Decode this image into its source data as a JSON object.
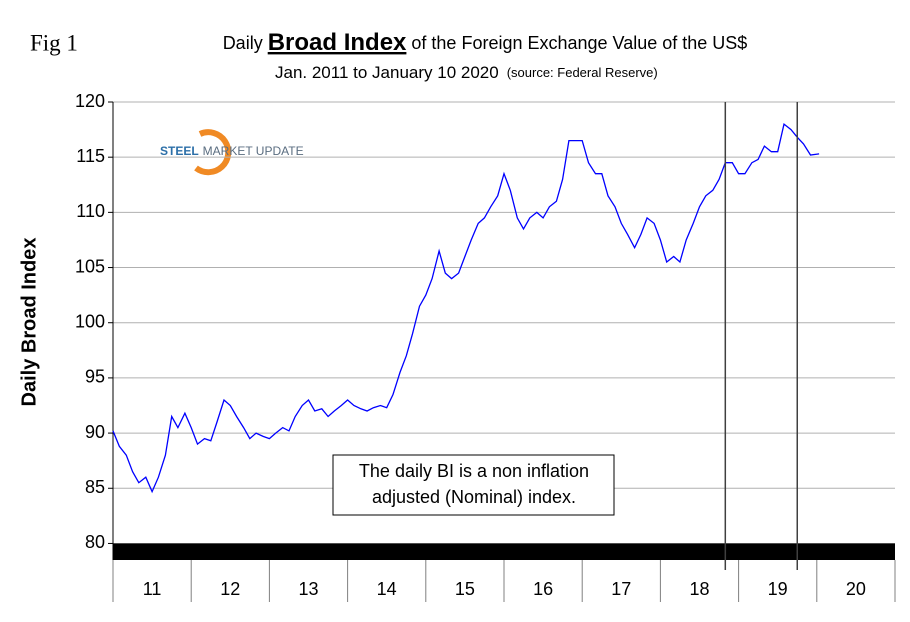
{
  "chart_data": {
    "type": "line",
    "fig_label": "Fig 1",
    "title_parts": [
      "Daily ",
      "Broad Index",
      " of the Foreign Exchange Value of the US$"
    ],
    "subtitle": "Jan. 2011 to January 10 2020",
    "source": "(source: Federal Reserve)",
    "y_label": "Daily Broad Index",
    "logo": [
      "STEEL",
      "MARKET UPDATE"
    ],
    "annotation": [
      "The daily BI is a non inflation",
      "adjusted (Nominal) index."
    ],
    "categories": [
      "11",
      "12",
      "13",
      "14",
      "15",
      "16",
      "17",
      "18",
      "19",
      "20"
    ],
    "xlim": [
      2011,
      2021
    ],
    "ylim": [
      78.5,
      120
    ],
    "yticks": [
      80,
      85,
      90,
      95,
      100,
      105,
      110,
      115,
      120
    ],
    "grid": true,
    "color": "#0000ff",
    "vlines": [
      2018.83,
      2019.75
    ],
    "x": [
      2011.0,
      2011.08,
      2011.17,
      2011.25,
      2011.33,
      2011.42,
      2011.5,
      2011.58,
      2011.67,
      2011.75,
      2011.83,
      2011.92,
      2012.0,
      2012.08,
      2012.17,
      2012.25,
      2012.33,
      2012.42,
      2012.5,
      2012.58,
      2012.67,
      2012.75,
      2012.83,
      2012.92,
      2013.0,
      2013.08,
      2013.17,
      2013.25,
      2013.33,
      2013.42,
      2013.5,
      2013.58,
      2013.67,
      2013.75,
      2013.83,
      2013.92,
      2014.0,
      2014.08,
      2014.17,
      2014.25,
      2014.33,
      2014.42,
      2014.5,
      2014.58,
      2014.67,
      2014.75,
      2014.83,
      2014.92,
      2015.0,
      2015.08,
      2015.17,
      2015.25,
      2015.33,
      2015.42,
      2015.5,
      2015.58,
      2015.67,
      2015.75,
      2015.83,
      2015.92,
      2016.0,
      2016.08,
      2016.17,
      2016.25,
      2016.33,
      2016.42,
      2016.5,
      2016.58,
      2016.67,
      2016.75,
      2016.83,
      2016.92,
      2017.0,
      2017.08,
      2017.17,
      2017.25,
      2017.33,
      2017.42,
      2017.5,
      2017.58,
      2017.67,
      2017.75,
      2017.83,
      2017.92,
      2018.0,
      2018.08,
      2018.17,
      2018.25,
      2018.33,
      2018.42,
      2018.5,
      2018.58,
      2018.67,
      2018.75,
      2018.83,
      2018.92,
      2019.0,
      2019.08,
      2019.17,
      2019.25,
      2019.33,
      2019.42,
      2019.5,
      2019.58,
      2019.67,
      2019.75,
      2019.83,
      2019.92,
      2020.03
    ],
    "values": [
      90.2,
      88.8,
      88,
      86.5,
      85.5,
      86,
      84.7,
      86,
      88,
      91.5,
      90.5,
      91.8,
      90.5,
      89,
      89.5,
      89.3,
      91,
      93,
      92.5,
      91.5,
      90.5,
      89.5,
      90,
      89.7,
      89.5,
      90,
      90.5,
      90.2,
      91.5,
      92.5,
      93,
      92,
      92.2,
      91.5,
      92,
      92.5,
      93,
      92.5,
      92.2,
      92,
      92.3,
      92.5,
      92.3,
      93.5,
      95.5,
      97,
      99,
      101.5,
      102.5,
      104,
      106.5,
      104.5,
      104,
      104.5,
      106,
      107.5,
      109,
      109.5,
      110.5,
      111.5,
      113.5,
      112,
      109.5,
      108.5,
      109.5,
      110,
      109.5,
      110.5,
      111,
      113,
      116.5,
      116.5,
      116.5,
      114.5,
      113.5,
      113.5,
      111.5,
      110.5,
      109,
      108,
      106.8,
      108,
      109.5,
      109,
      107.5,
      105.5,
      106,
      105.5,
      107.5,
      109,
      110.5,
      111.5,
      112,
      113,
      114.5,
      114.5,
      113.5,
      113.5,
      114.5,
      114.8,
      116,
      115.5,
      115.5,
      118,
      117.5,
      116.8,
      116.2,
      115.2,
      115.3
    ]
  }
}
